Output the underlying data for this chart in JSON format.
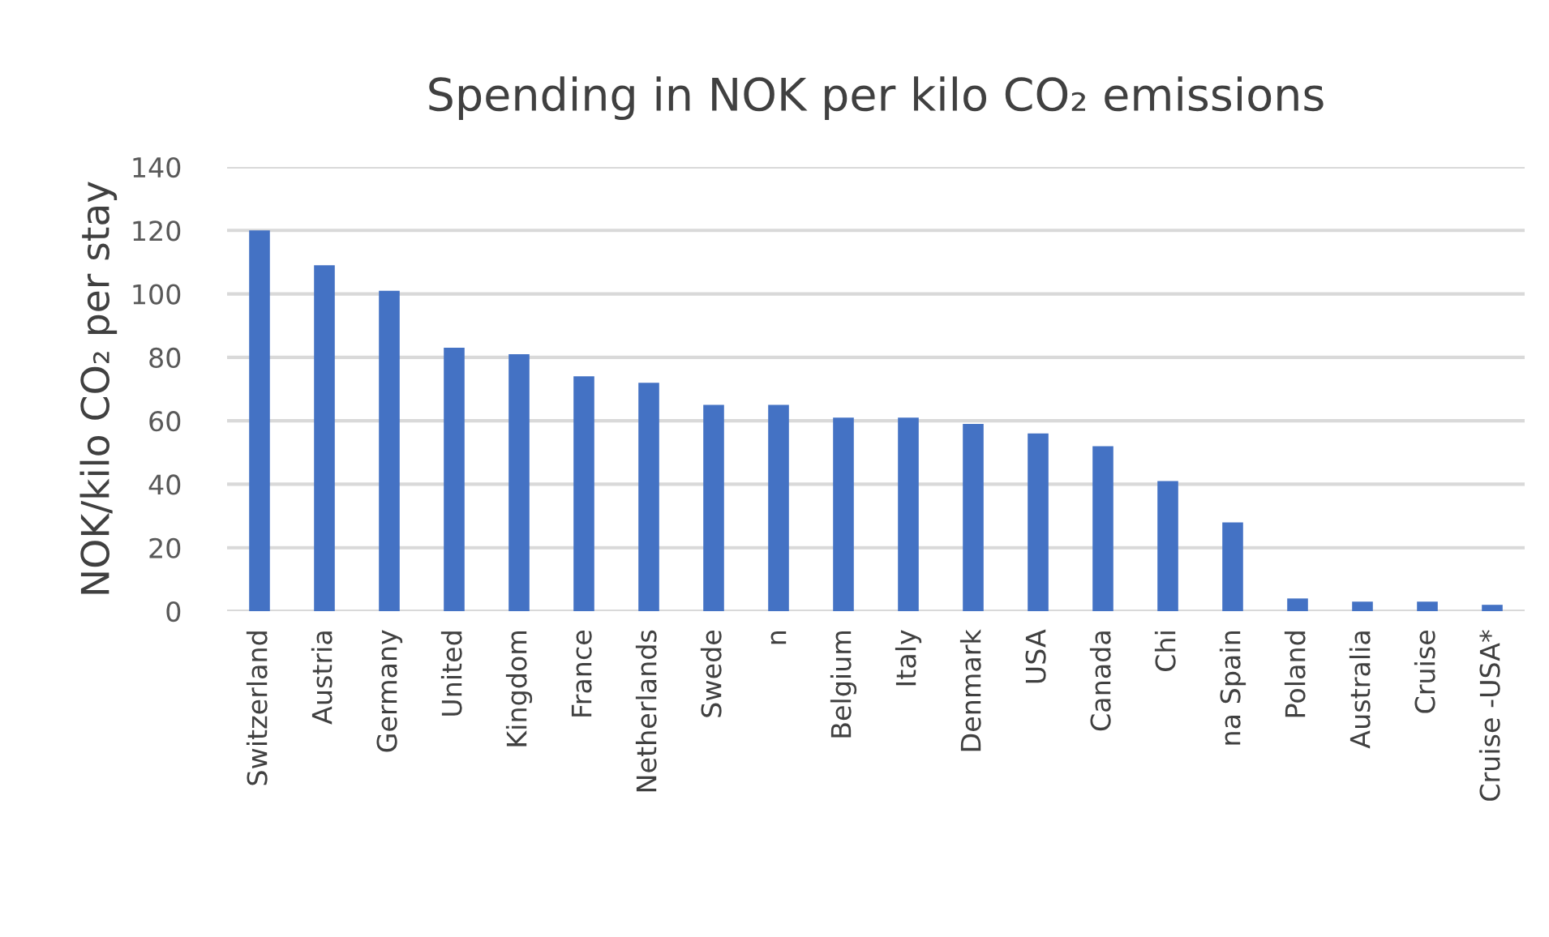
{
  "chart_data": {
    "type": "bar",
    "title": "Spending in NOK per kilo CO₂ emissions",
    "ylabel": "NOK/kilo CO₂ per stay",
    "categories": [
      "Switzerland",
      "Austria",
      "Germany",
      "United",
      "Kingdom",
      "France",
      "Netherlands",
      "Swede",
      "n",
      "Belgium",
      "Italy",
      "Denmark",
      "USA",
      "Canada",
      "Chi",
      "na Spain",
      "Poland",
      "Australia",
      "Cruise",
      "Cruise -USA*"
    ],
    "values": [
      120,
      109,
      101,
      83,
      81,
      74,
      72,
      65,
      65,
      61,
      61,
      59,
      56,
      52,
      41,
      28,
      4,
      3,
      3,
      2
    ],
    "color": "#4472c4",
    "ylim": [
      0,
      140
    ],
    "yticks": [
      0,
      20,
      40,
      60,
      80,
      100,
      120,
      140
    ],
    "grid": "y"
  }
}
